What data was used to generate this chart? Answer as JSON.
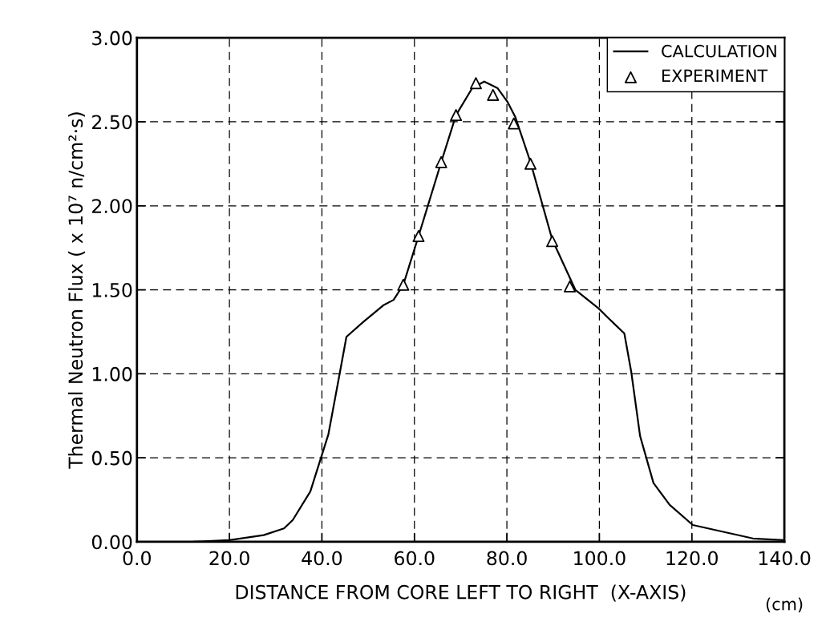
{
  "chart_data": {
    "type": "line",
    "xlabel": "DISTANCE FROM CORE LEFT TO RIGHT  (X-AXIS)",
    "ylabel": "Thermal Neutron Flux ( x 10⁷ n/cm²·s)",
    "annotations": [
      "(cm)"
    ],
    "xlim": [
      0,
      140
    ],
    "ylim": [
      0,
      3
    ],
    "xticks": [
      {
        "value": 0,
        "label": "0.0"
      },
      {
        "value": 20,
        "label": "20.0"
      },
      {
        "value": 40,
        "label": "40.0"
      },
      {
        "value": 60,
        "label": "60.0"
      },
      {
        "value": 80,
        "label": "80.0"
      },
      {
        "value": 100,
        "label": "100.0"
      },
      {
        "value": 120,
        "label": "120.0"
      },
      {
        "value": 140,
        "label": "140.0"
      }
    ],
    "yticks": [
      {
        "value": 0,
        "label": "0.00"
      },
      {
        "value": 0.5,
        "label": "0.50"
      },
      {
        "value": 1,
        "label": "1.00"
      },
      {
        "value": 1.5,
        "label": "1.50"
      },
      {
        "value": 2,
        "label": "2.00"
      },
      {
        "value": 2.5,
        "label": "2.50"
      },
      {
        "value": 3,
        "label": "3.00"
      }
    ],
    "grid": true,
    "legend": "top right",
    "series": [
      {
        "name": "CALCULATION",
        "color": "#000000",
        "marker": "none",
        "line_style": "solid",
        "x": [
          12.3,
          20,
          27.4,
          31.8,
          33.7,
          37.5,
          41.4,
          43.9,
          45.3,
          49,
          53.4,
          55.5,
          57.6,
          60.9,
          65.8,
          69.0,
          72.5,
          75.1,
          78.0,
          80.1,
          81.8,
          85.1,
          89.8,
          94.8,
          99.8,
          102,
          105.4,
          106.9,
          108.8,
          111.7,
          115.2,
          120.2,
          133.2,
          139.6
        ],
        "values": [
          0,
          0.01,
          0.04,
          0.08,
          0.13,
          0.3,
          0.64,
          1.01,
          1.22,
          1.31,
          1.41,
          1.44,
          1.53,
          1.82,
          2.26,
          2.54,
          2.7,
          2.74,
          2.7,
          2.62,
          2.53,
          2.26,
          1.8,
          1.5,
          1.39,
          1.33,
          1.24,
          1.01,
          0.63,
          0.35,
          0.22,
          0.1,
          0.02,
          0.01
        ]
      },
      {
        "name": "EXPERIMENT",
        "type": "scatter",
        "color": "#000000",
        "marker": "triangle",
        "x": [
          57.6,
          60.9,
          65.8,
          69.0,
          73.3,
          77.0,
          81.5,
          85.1,
          89.8,
          93.6
        ],
        "values": [
          1.53,
          1.82,
          2.26,
          2.54,
          2.73,
          2.66,
          2.49,
          2.25,
          1.79,
          1.52
        ]
      }
    ]
  }
}
